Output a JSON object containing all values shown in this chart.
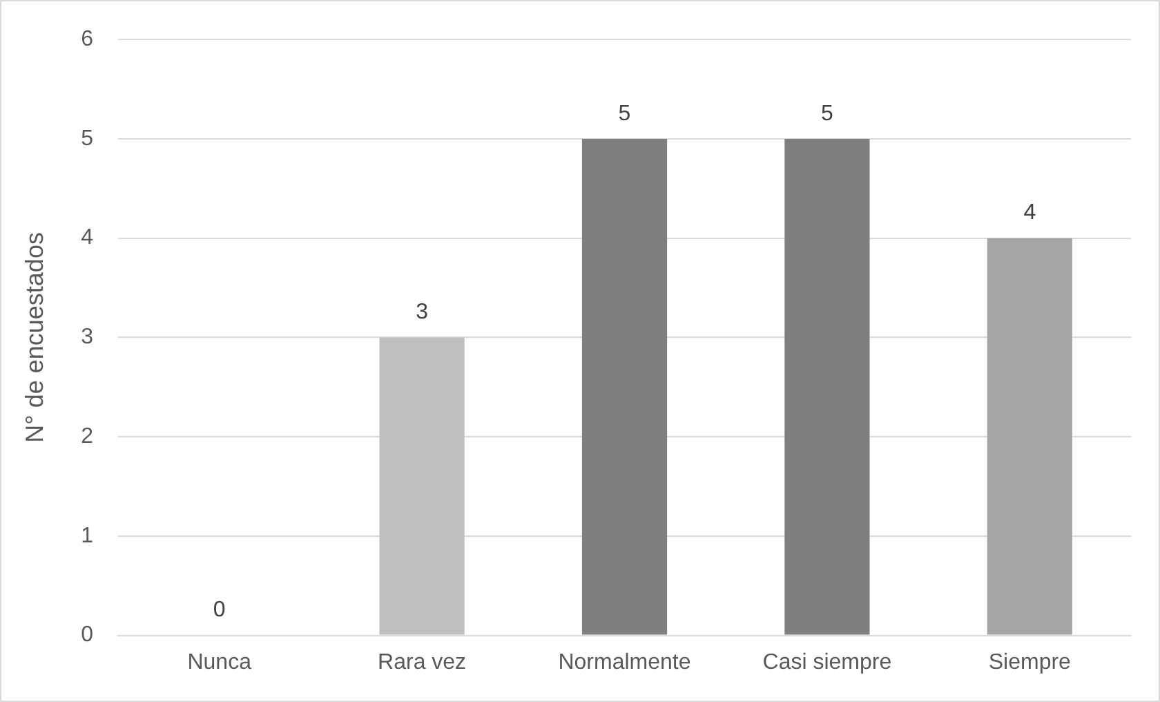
{
  "chart_data": {
    "type": "bar",
    "ylabel": "N° de encuestados",
    "categories": [
      "Nunca",
      "Rara vez",
      "Normalmente",
      "Casi siempre",
      "Siempre"
    ],
    "values": [
      0,
      3,
      5,
      5,
      4
    ],
    "colors": [
      "#bfbfbf",
      "#bfbfbf",
      "#7f7f7f",
      "#7f7f7f",
      "#a5a5a5"
    ],
    "ylim": [
      0,
      6
    ],
    "yticks": [
      0,
      1,
      2,
      3,
      4,
      5,
      6
    ],
    "grid": "y",
    "data_labels": true,
    "legend": false
  }
}
